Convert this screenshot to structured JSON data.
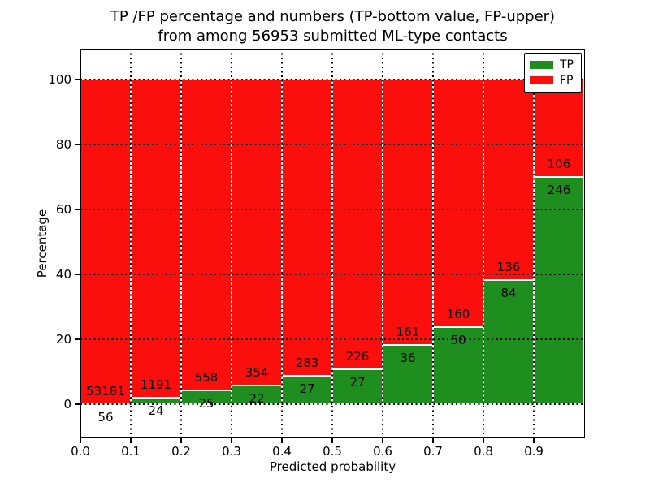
{
  "title": {
    "line1": "TP /FP percentage and numbers (TP-bottom value, FP-upper)",
    "line2": "from among 56953 submitted ML-type contacts"
  },
  "axes": {
    "xlabel": "Predicted probability",
    "ylabel": "Percentage",
    "xtick_labels": [
      "0.0",
      "0.1",
      "0.2",
      "0.3",
      "0.4",
      "0.5",
      "0.6",
      "0.7",
      "0.8",
      "0.9"
    ],
    "ytick_values": [
      0,
      20,
      40,
      60,
      80,
      100
    ],
    "ytick_labels": [
      "0",
      "20",
      "40",
      "60",
      "80",
      "100"
    ],
    "xlim": [
      0.0,
      1.0
    ],
    "ylim": [
      -10.5,
      109.5
    ],
    "grid": "black dotted, drawn above bars"
  },
  "legend": {
    "position": "upper right",
    "entries": [
      {
        "label": "TP",
        "color": "#1e8e1e"
      },
      {
        "label": "FP",
        "color": "#fb0f0c"
      }
    ]
  },
  "chart_data": {
    "type": "bar",
    "stacked": true,
    "normalized_to_percent": true,
    "title": "TP /FP percentage and numbers (TP-bottom value, FP-upper) from among 56953 submitted ML-type contacts",
    "xlabel": "Predicted probability",
    "ylabel": "Percentage",
    "total_contacts": 56953,
    "bin_width": 0.1,
    "bins": [
      "0.0-0.1",
      "0.1-0.2",
      "0.2-0.3",
      "0.3-0.4",
      "0.4-0.5",
      "0.5-0.6",
      "0.6-0.7",
      "0.7-0.8",
      "0.8-0.9",
      "0.9-1.0"
    ],
    "series": [
      {
        "name": "TP",
        "color": "#1e8e1e",
        "counts": [
          56,
          24,
          25,
          22,
          27,
          27,
          36,
          50,
          84,
          246
        ]
      },
      {
        "name": "FP",
        "color": "#fb0f0c",
        "counts": [
          53181,
          1191,
          558,
          354,
          283,
          226,
          161,
          160,
          136,
          106
        ]
      }
    ],
    "tp_percent": [
      0.11,
      1.98,
      4.29,
      5.85,
      8.71,
      10.67,
      18.27,
      23.81,
      38.18,
      69.89
    ],
    "fp_percent": [
      99.89,
      98.02,
      95.71,
      94.15,
      91.29,
      89.33,
      81.73,
      76.19,
      61.82,
      30.11
    ]
  }
}
